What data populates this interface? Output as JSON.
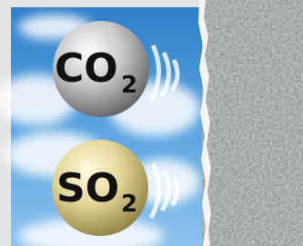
{
  "molecules": [
    {
      "symbol": "CO",
      "subscript": "2"
    },
    {
      "symbol": "SO",
      "subscript": "2"
    }
  ]
}
